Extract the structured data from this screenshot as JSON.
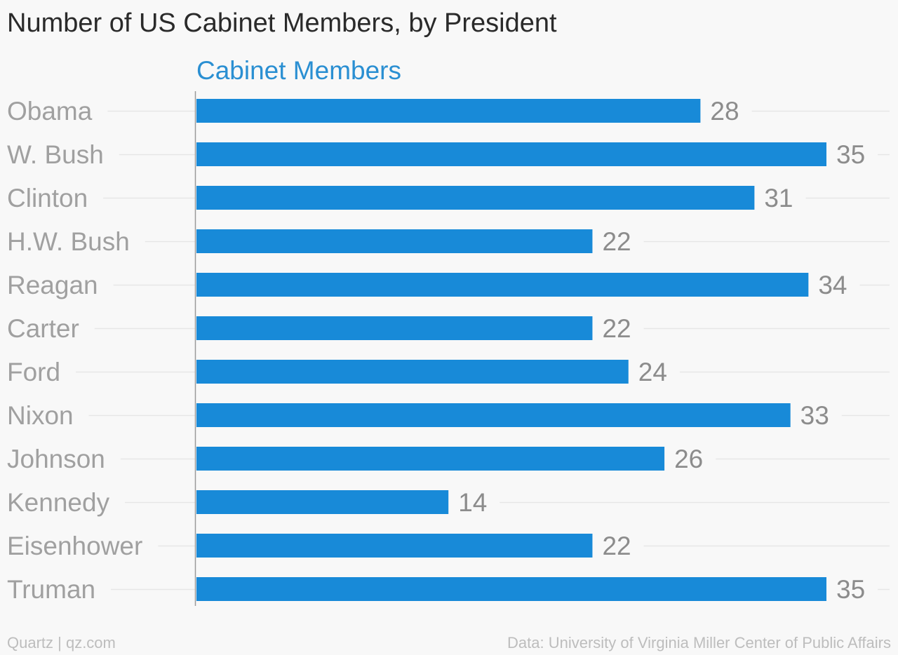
{
  "chart_data": {
    "type": "bar",
    "orientation": "horizontal",
    "title": "Number of US Cabinet Members, by President",
    "categories": [
      "Obama",
      "W. Bush",
      "Clinton",
      "H.W. Bush",
      "Reagan",
      "Carter",
      "Ford",
      "Nixon",
      "Johnson",
      "Kennedy",
      "Eisenhower",
      "Truman"
    ],
    "series": [
      {
        "name": "Cabinet Members",
        "values": [
          28,
          35,
          31,
          22,
          34,
          22,
          24,
          33,
          26,
          14,
          22,
          35
        ]
      }
    ],
    "xlim": [
      0,
      35
    ],
    "grid": true,
    "legend": "top-left",
    "data_labels": true
  },
  "footer": {
    "credit": "Quartz | qz.com",
    "source": "Data: University of Virginia Miller Center of Public Affairs"
  },
  "colors": {
    "bar": "#188ad8",
    "series_label": "#2a8fd2",
    "category_label": "#a0a0a0",
    "value_label": "#8c8c8c",
    "gridline": "#e6e6e6",
    "axis": "#9a9a9a",
    "title": "#2a2a2a",
    "background": "#f8f8f8"
  }
}
